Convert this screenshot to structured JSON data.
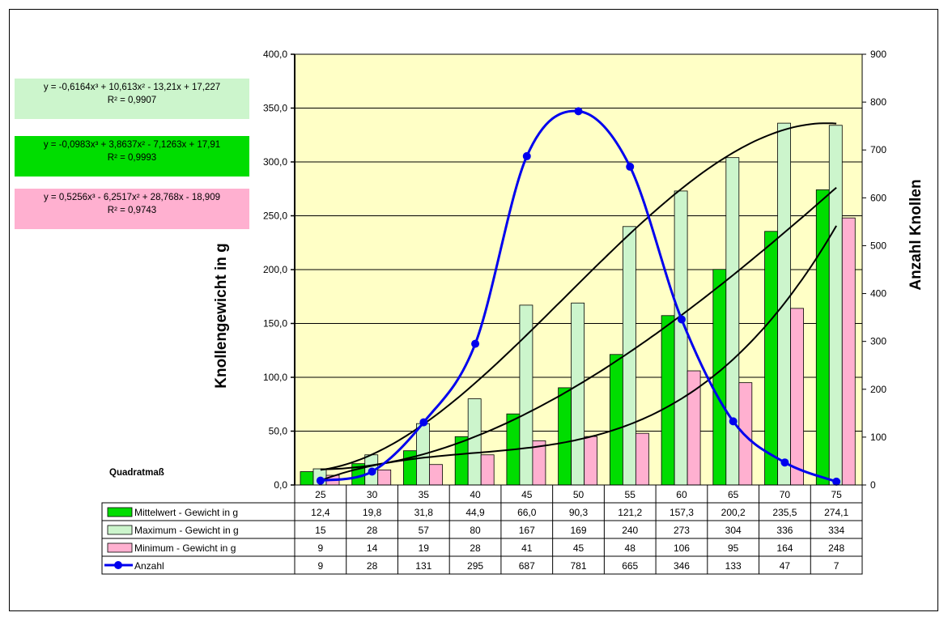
{
  "colors": {
    "mean": "#00dd00",
    "max": "#ccf5cc",
    "min": "#ffb0d0",
    "count": "#0000ee",
    "plot_bg": "#ffffc6",
    "eq1_bg": "#ccf5cc",
    "eq2_bg": "#00dd00",
    "eq3_bg": "#ffb0d0"
  },
  "equations": [
    {
      "line1": "y = -0,6164x³ + 10,613x² - 13,21x + 17,227",
      "line2": "R² = 0,9907"
    },
    {
      "line1": "y = -0,0983x³ + 3,8637x² - 7,1263x + 17,91",
      "line2": "R² = 0,9993"
    },
    {
      "line1": "y = 0,5256x³ - 6,2517x² + 28,768x - 18,909",
      "line2": "R² = 0,9743"
    }
  ],
  "chart_data": {
    "type": "bar",
    "categories_label": "Quadratmaß",
    "categories": [
      "25",
      "30",
      "35",
      "40",
      "45",
      "50",
      "55",
      "60",
      "65",
      "70",
      "75"
    ],
    "ylabel": "Knollengewicht in g",
    "y2label": "Anzahl Knollen",
    "ylim": [
      0,
      400
    ],
    "y2lim": [
      0,
      900
    ],
    "yticks": [
      "0,0",
      "50,0",
      "100,0",
      "150,0",
      "200,0",
      "250,0",
      "300,0",
      "350,0",
      "400,0"
    ],
    "y2ticks": [
      "0",
      "100",
      "200",
      "300",
      "400",
      "500",
      "600",
      "700",
      "800",
      "900"
    ],
    "grid": true,
    "series": [
      {
        "name": "Mittelwert - Gewicht in g",
        "kind": "bar",
        "axis": "left",
        "values": [
          12.4,
          19.8,
          31.8,
          44.9,
          66.0,
          90.3,
          121.2,
          157.3,
          200.2,
          235.5,
          274.1
        ],
        "labels": [
          "12,4",
          "19,8",
          "31,8",
          "44,9",
          "66,0",
          "90,3",
          "121,2",
          "157,3",
          "200,2",
          "235,5",
          "274,1"
        ]
      },
      {
        "name": "Maximum - Gewicht in g",
        "kind": "bar",
        "axis": "left",
        "values": [
          15,
          28,
          57,
          80,
          167,
          169,
          240,
          273,
          304,
          336,
          334
        ],
        "labels": [
          "15",
          "28",
          "57",
          "80",
          "167",
          "169",
          "240",
          "273",
          "304",
          "336",
          "334"
        ]
      },
      {
        "name": "Minimum - Gewicht in g",
        "kind": "bar",
        "axis": "left",
        "values": [
          9,
          14,
          19,
          28,
          41,
          45,
          48,
          106,
          95,
          164,
          248
        ],
        "labels": [
          "9",
          "14",
          "19",
          "28",
          "41",
          "45",
          "48",
          "106",
          "95",
          "164",
          "248"
        ]
      },
      {
        "name": "Anzahl",
        "kind": "line",
        "axis": "right",
        "values": [
          9,
          28,
          131,
          295,
          687,
          781,
          665,
          346,
          133,
          47,
          7
        ],
        "labels": [
          "9",
          "28",
          "131",
          "295",
          "687",
          "781",
          "665",
          "346",
          "133",
          "47",
          "7"
        ]
      }
    ],
    "trendlines": [
      {
        "of": "Maximum - Gewicht in g",
        "type": "poly3",
        "coef": [
          -0.6164,
          10.613,
          -13.21,
          17.227
        ]
      },
      {
        "of": "Mittelwert - Gewicht in g",
        "type": "poly3",
        "coef": [
          -0.0983,
          3.8637,
          -7.1263,
          17.91
        ]
      },
      {
        "of": "Minimum - Gewicht in g",
        "type": "poly3",
        "coef": [
          0.5256,
          -6.2517,
          28.768,
          -18.909
        ]
      }
    ]
  }
}
